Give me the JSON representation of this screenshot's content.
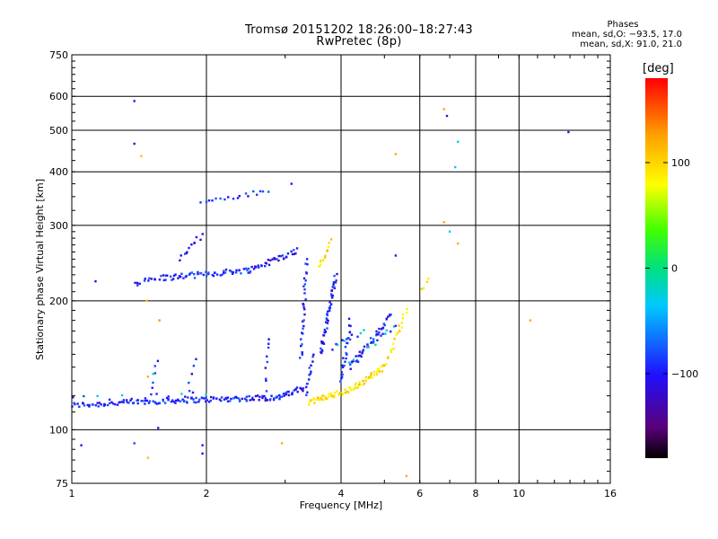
{
  "chart_data": {
    "type": "scatter",
    "title": "Tromsø 20151202 18:26:00–18:27:43",
    "subtitle": "RwPretec (8p)",
    "xlabel": "Frequency [MHz]",
    "ylabel": "Stationary phase Virtual Height [km]",
    "x_scale": "log",
    "y_scale": "log",
    "xlim": [
      1,
      16
    ],
    "ylim": [
      75,
      750
    ],
    "x_ticks": [
      1,
      2,
      4,
      6,
      8,
      10,
      16
    ],
    "x_tick_labels": [
      "1",
      "2",
      "4",
      "6",
      "8",
      "10",
      "16"
    ],
    "y_ticks": [
      75,
      100,
      200,
      300,
      400,
      500,
      600,
      750
    ],
    "y_tick_labels": [
      "75",
      "100",
      "200",
      "300",
      "400",
      "500",
      "600",
      "750"
    ],
    "grid": true,
    "colorbar": {
      "label": "[deg]",
      "range": [
        -180,
        180
      ],
      "ticks": [
        100,
        0,
        -100
      ],
      "tick_labels": [
        "100",
        "0",
        "−100"
      ],
      "colors": [
        "#000000",
        "#5a0078",
        "#2010ff",
        "#00c8ff",
        "#00e080",
        "#40ff00",
        "#ffff00",
        "#ffa000",
        "#ff0000"
      ]
    },
    "stats": {
      "title": "Phases",
      "line_o": "mean, sd,O: −93.5, 17.0",
      "line_x": "mean, sd,X:  91.0, 21.0"
    },
    "series": [
      {
        "mode": "o",
        "value_deg": -95,
        "segments": [
          [
            1.0,
            114,
            1.65,
            117,
            60
          ],
          [
            1.65,
            117,
            2.9,
            119,
            80
          ],
          [
            2.9,
            119,
            3.3,
            125,
            25
          ],
          [
            1.38,
            220,
            1.6,
            227,
            14
          ],
          [
            1.6,
            226,
            2.5,
            236,
            55
          ],
          [
            2.5,
            236,
            3.2,
            262,
            35
          ],
          [
            1.95,
            340,
            2.75,
            360,
            18
          ],
          [
            1.75,
            250,
            1.95,
            285,
            12
          ],
          [
            3.25,
            145,
            3.35,
            250,
            30
          ],
          [
            3.35,
            120,
            3.45,
            150,
            14
          ],
          [
            3.6,
            150,
            3.9,
            230,
            45
          ],
          [
            4.0,
            130,
            4.2,
            180,
            25
          ],
          [
            4.2,
            140,
            5.2,
            185,
            40
          ],
          [
            2.7,
            120,
            2.75,
            165,
            10
          ],
          [
            1.5,
            120,
            1.55,
            145,
            6
          ],
          [
            1.8,
            118,
            1.9,
            145,
            6
          ]
        ]
      },
      {
        "mode": "x",
        "value_deg": 95,
        "segments": [
          [
            3.4,
            116,
            4.2,
            124,
            40
          ],
          [
            4.2,
            124,
            5.0,
            140,
            35
          ],
          [
            5.0,
            140,
            5.6,
            190,
            20
          ],
          [
            3.55,
            240,
            3.8,
            275,
            12
          ],
          [
            6.1,
            210,
            6.3,
            225,
            4
          ]
        ]
      },
      {
        "mode": "mixed",
        "value_deg": -40,
        "segments": [
          [
            4.2,
            145,
            5.3,
            175,
            18
          ],
          [
            1.0,
            118,
            2.0,
            122,
            12
          ],
          [
            3.8,
            155,
            4.5,
            170,
            10
          ]
        ]
      }
    ],
    "isolated_points": [
      {
        "x": 1.38,
        "y": 585,
        "deg": -100
      },
      {
        "x": 1.38,
        "y": 465,
        "deg": -100
      },
      {
        "x": 1.43,
        "y": 435,
        "deg": 110
      },
      {
        "x": 3.1,
        "y": 375,
        "deg": -100
      },
      {
        "x": 5.3,
        "y": 440,
        "deg": 120
      },
      {
        "x": 6.8,
        "y": 560,
        "deg": 120
      },
      {
        "x": 6.9,
        "y": 540,
        "deg": -100
      },
      {
        "x": 7.3,
        "y": 470,
        "deg": -30
      },
      {
        "x": 7.2,
        "y": 410,
        "deg": -30
      },
      {
        "x": 6.8,
        "y": 305,
        "deg": 120
      },
      {
        "x": 7.0,
        "y": 290,
        "deg": -30
      },
      {
        "x": 7.3,
        "y": 272,
        "deg": 120
      },
      {
        "x": 5.3,
        "y": 255,
        "deg": -100
      },
      {
        "x": 12.9,
        "y": 495,
        "deg": -100
      },
      {
        "x": 10.6,
        "y": 180,
        "deg": 120
      },
      {
        "x": 1.13,
        "y": 222,
        "deg": -100
      },
      {
        "x": 1.47,
        "y": 200,
        "deg": 110
      },
      {
        "x": 1.57,
        "y": 180,
        "deg": 130
      },
      {
        "x": 1.05,
        "y": 92,
        "deg": -100
      },
      {
        "x": 1.38,
        "y": 93,
        "deg": -80
      },
      {
        "x": 1.48,
        "y": 86,
        "deg": 110
      },
      {
        "x": 1.56,
        "y": 101,
        "deg": -100
      },
      {
        "x": 1.96,
        "y": 92,
        "deg": -100
      },
      {
        "x": 1.96,
        "y": 88,
        "deg": -100
      },
      {
        "x": 2.95,
        "y": 93,
        "deg": 120
      },
      {
        "x": 5.6,
        "y": 78,
        "deg": 120
      },
      {
        "x": 1.48,
        "y": 133,
        "deg": 120
      },
      {
        "x": 1.52,
        "y": 135,
        "deg": -20
      }
    ]
  }
}
